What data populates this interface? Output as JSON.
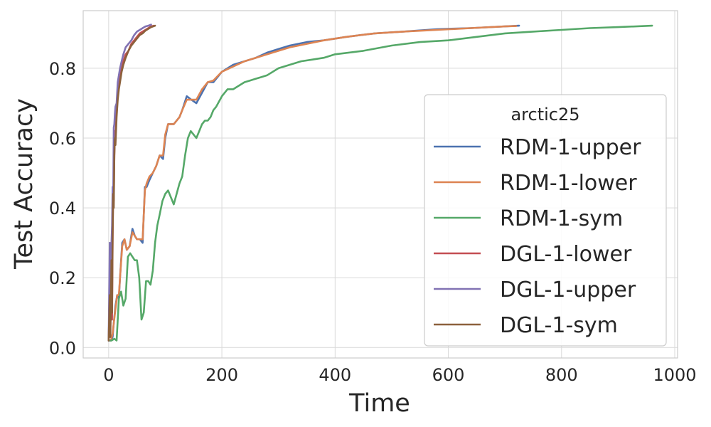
{
  "chart_data": {
    "type": "line",
    "xlabel": "Time",
    "ylabel": "Test Accuracy",
    "xlim": [
      -45,
      1005
    ],
    "ylim": [
      -0.03,
      0.965
    ],
    "xticks": [
      0,
      200,
      400,
      600,
      800,
      1000
    ],
    "yticks": [
      0.0,
      0.2,
      0.4,
      0.6,
      0.8
    ],
    "grid": true,
    "legend": {
      "title": "arctic25",
      "placement": "center-right"
    },
    "series": [
      {
        "name": "RDM-1-upper",
        "color": "#4c72b0",
        "x": [
          0,
          4,
          7,
          9,
          12,
          15,
          18,
          20,
          24,
          28,
          32,
          37,
          42,
          46,
          50,
          55,
          60,
          64,
          67,
          72,
          78,
          84,
          90,
          96,
          100,
          105,
          115,
          125,
          130,
          138,
          146,
          155,
          165,
          175,
          185,
          200,
          220,
          240,
          260,
          280,
          300,
          320,
          350,
          380,
          420,
          470,
          520,
          580,
          640,
          700,
          725
        ],
        "y": [
          0.02,
          0.02,
          0.03,
          0.07,
          0.12,
          0.15,
          0.14,
          0.2,
          0.3,
          0.31,
          0.28,
          0.29,
          0.34,
          0.32,
          0.31,
          0.31,
          0.3,
          0.46,
          0.46,
          0.48,
          0.5,
          0.52,
          0.55,
          0.54,
          0.6,
          0.64,
          0.64,
          0.66,
          0.68,
          0.72,
          0.71,
          0.7,
          0.73,
          0.76,
          0.76,
          0.79,
          0.81,
          0.82,
          0.83,
          0.845,
          0.855,
          0.865,
          0.875,
          0.88,
          0.89,
          0.9,
          0.905,
          0.912,
          0.915,
          0.92,
          0.922
        ]
      },
      {
        "name": "RDM-1-lower",
        "color": "#dd8452",
        "x": [
          0,
          4,
          7,
          9,
          12,
          15,
          18,
          20,
          24,
          28,
          32,
          37,
          42,
          46,
          50,
          55,
          60,
          64,
          67,
          72,
          78,
          84,
          90,
          96,
          100,
          105,
          115,
          125,
          130,
          138,
          146,
          155,
          165,
          175,
          185,
          200,
          220,
          240,
          260,
          280,
          300,
          320,
          350,
          380,
          420,
          470,
          520,
          580,
          640,
          700,
          720
        ],
        "y": [
          0.02,
          0.02,
          0.04,
          0.07,
          0.11,
          0.15,
          0.15,
          0.2,
          0.29,
          0.31,
          0.28,
          0.29,
          0.33,
          0.32,
          0.31,
          0.31,
          0.31,
          0.45,
          0.47,
          0.49,
          0.5,
          0.52,
          0.55,
          0.55,
          0.61,
          0.64,
          0.64,
          0.66,
          0.68,
          0.71,
          0.71,
          0.71,
          0.74,
          0.76,
          0.765,
          0.79,
          0.805,
          0.82,
          0.83,
          0.84,
          0.85,
          0.86,
          0.87,
          0.88,
          0.89,
          0.9,
          0.905,
          0.91,
          0.915,
          0.92,
          0.921
        ]
      },
      {
        "name": "RDM-1-sym",
        "color": "#55a868",
        "x": [
          0,
          5,
          10,
          14,
          18,
          22,
          26,
          30,
          34,
          38,
          42,
          46,
          50,
          54,
          58,
          62,
          66,
          70,
          74,
          78,
          82,
          86,
          90,
          95,
          100,
          105,
          110,
          115,
          120,
          125,
          130,
          135,
          140,
          145,
          150,
          155,
          160,
          165,
          170,
          175,
          180,
          185,
          190,
          200,
          210,
          220,
          230,
          240,
          250,
          260,
          270,
          280,
          300,
          320,
          340,
          360,
          380,
          400,
          450,
          500,
          550,
          600,
          650,
          700,
          750,
          800,
          850,
          900,
          960
        ],
        "y": [
          0.02,
          0.02,
          0.025,
          0.02,
          0.14,
          0.16,
          0.12,
          0.14,
          0.26,
          0.27,
          0.26,
          0.25,
          0.25,
          0.2,
          0.08,
          0.1,
          0.19,
          0.19,
          0.18,
          0.22,
          0.3,
          0.35,
          0.38,
          0.42,
          0.44,
          0.45,
          0.43,
          0.41,
          0.44,
          0.47,
          0.49,
          0.55,
          0.6,
          0.62,
          0.61,
          0.6,
          0.62,
          0.64,
          0.65,
          0.65,
          0.66,
          0.68,
          0.69,
          0.72,
          0.74,
          0.74,
          0.75,
          0.76,
          0.765,
          0.77,
          0.775,
          0.78,
          0.8,
          0.81,
          0.82,
          0.825,
          0.83,
          0.84,
          0.85,
          0.865,
          0.875,
          0.88,
          0.89,
          0.9,
          0.905,
          0.91,
          0.915,
          0.918,
          0.922
        ]
      },
      {
        "name": "DGL-1-lower",
        "color": "#c44e52",
        "x": [
          0,
          2,
          3,
          5,
          6,
          7,
          8,
          9,
          10,
          11,
          12,
          14,
          16,
          18,
          20,
          23,
          26,
          30,
          35,
          40,
          45,
          50,
          55,
          60,
          65,
          70,
          75,
          80
        ],
        "y": [
          0.02,
          0.15,
          0.05,
          0.28,
          0.08,
          0.3,
          0.45,
          0.42,
          0.55,
          0.62,
          0.6,
          0.68,
          0.72,
          0.75,
          0.77,
          0.8,
          0.82,
          0.84,
          0.85,
          0.87,
          0.88,
          0.89,
          0.9,
          0.905,
          0.91,
          0.915,
          0.92,
          0.922
        ]
      },
      {
        "name": "DGL-1-upper",
        "color": "#8172b3",
        "x": [
          0,
          2,
          3,
          4,
          5,
          6,
          7,
          8,
          9,
          10,
          11,
          12,
          14,
          16,
          18,
          20,
          23,
          26,
          30,
          35,
          40,
          45,
          50,
          55,
          60,
          65,
          70,
          75
        ],
        "y": [
          0.02,
          0.3,
          0.1,
          0.28,
          0.3,
          0.35,
          0.46,
          0.42,
          0.63,
          0.64,
          0.67,
          0.69,
          0.7,
          0.76,
          0.78,
          0.8,
          0.82,
          0.84,
          0.86,
          0.87,
          0.88,
          0.895,
          0.905,
          0.91,
          0.915,
          0.92,
          0.922,
          0.925
        ]
      },
      {
        "name": "DGL-1-sym",
        "color": "#8c613c",
        "x": [
          0,
          2,
          3,
          5,
          6,
          7,
          8,
          9,
          10,
          11,
          12,
          14,
          16,
          18,
          20,
          23,
          26,
          30,
          35,
          40,
          45,
          50,
          55,
          60,
          65,
          70,
          75,
          82
        ],
        "y": [
          0.02,
          0.15,
          0.03,
          0.25,
          0.1,
          0.32,
          0.44,
          0.4,
          0.55,
          0.6,
          0.58,
          0.66,
          0.71,
          0.74,
          0.76,
          0.79,
          0.81,
          0.83,
          0.85,
          0.865,
          0.875,
          0.885,
          0.895,
          0.9,
          0.908,
          0.913,
          0.918,
          0.922
        ]
      }
    ]
  }
}
